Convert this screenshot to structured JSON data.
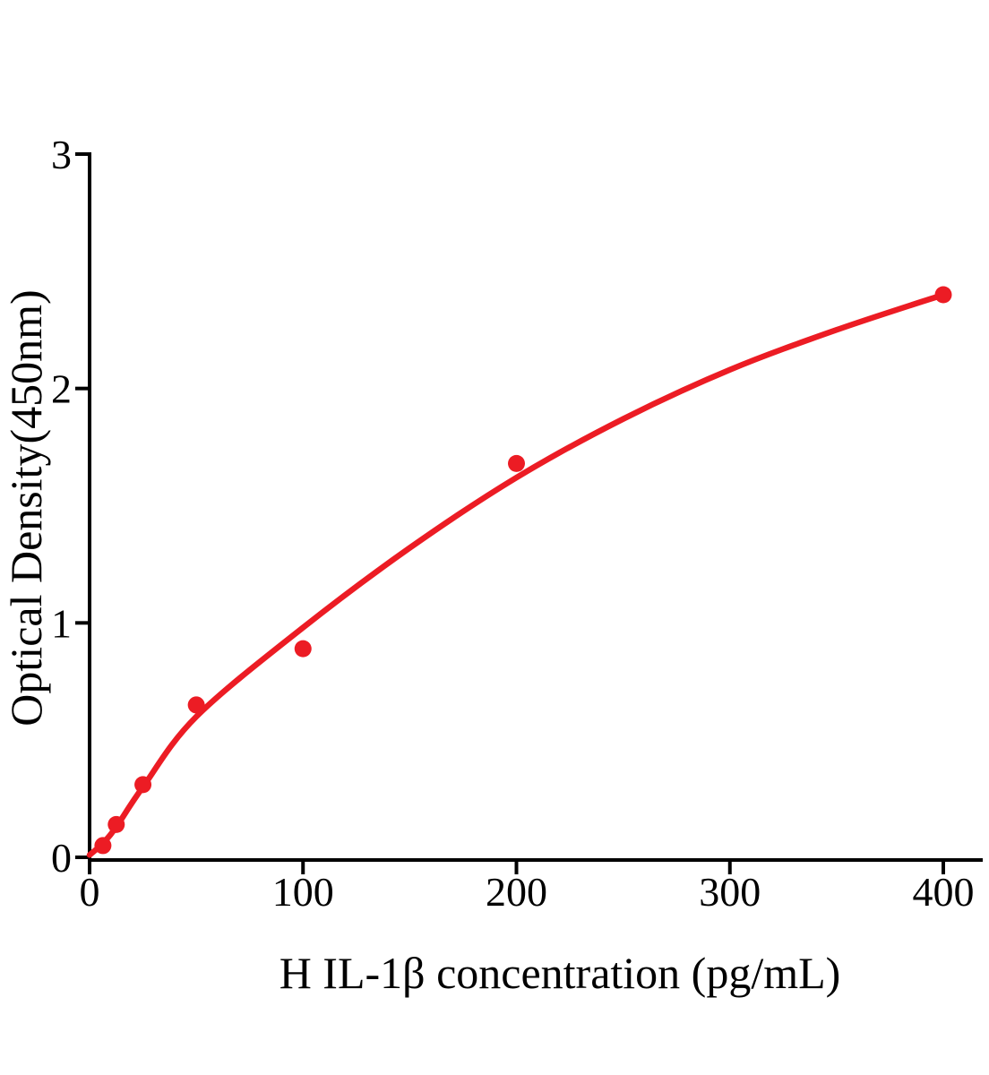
{
  "figure": {
    "background": "#ffffff",
    "accent_color": "#EC1C24",
    "axis_color": "#000000"
  },
  "chart_data": {
    "type": "scatter",
    "title": "",
    "xlabel": "H IL-1β concentration (pg/mL)",
    "ylabel": "Optical Density(450nm)",
    "xlim": [
      0,
      418
    ],
    "ylim": [
      0,
      3
    ],
    "grid": false,
    "legend": "none",
    "x_ticks": [
      0,
      100,
      200,
      300,
      400
    ],
    "y_ticks": [
      0,
      1,
      2,
      3
    ],
    "series": [
      {
        "type": "scatter_with_fit_curve",
        "color": "#EC1C24",
        "points": [
          {
            "x": 6.25,
            "y": 0.05
          },
          {
            "x": 12.5,
            "y": 0.14
          },
          {
            "x": 25,
            "y": 0.31
          },
          {
            "x": 50,
            "y": 0.65
          },
          {
            "x": 100,
            "y": 0.89
          },
          {
            "x": 200,
            "y": 1.68
          },
          {
            "x": 400,
            "y": 2.4
          }
        ],
        "fit_curve_points": [
          {
            "x": 0,
            "y": 0.01
          },
          {
            "x": 6.25,
            "y": 0.06
          },
          {
            "x": 12.5,
            "y": 0.13
          },
          {
            "x": 25,
            "y": 0.3
          },
          {
            "x": 50,
            "y": 0.6
          },
          {
            "x": 100,
            "y": 0.98
          },
          {
            "x": 150,
            "y": 1.32
          },
          {
            "x": 200,
            "y": 1.62
          },
          {
            "x": 250,
            "y": 1.87
          },
          {
            "x": 300,
            "y": 2.08
          },
          {
            "x": 350,
            "y": 2.25
          },
          {
            "x": 400,
            "y": 2.4
          }
        ]
      }
    ]
  }
}
